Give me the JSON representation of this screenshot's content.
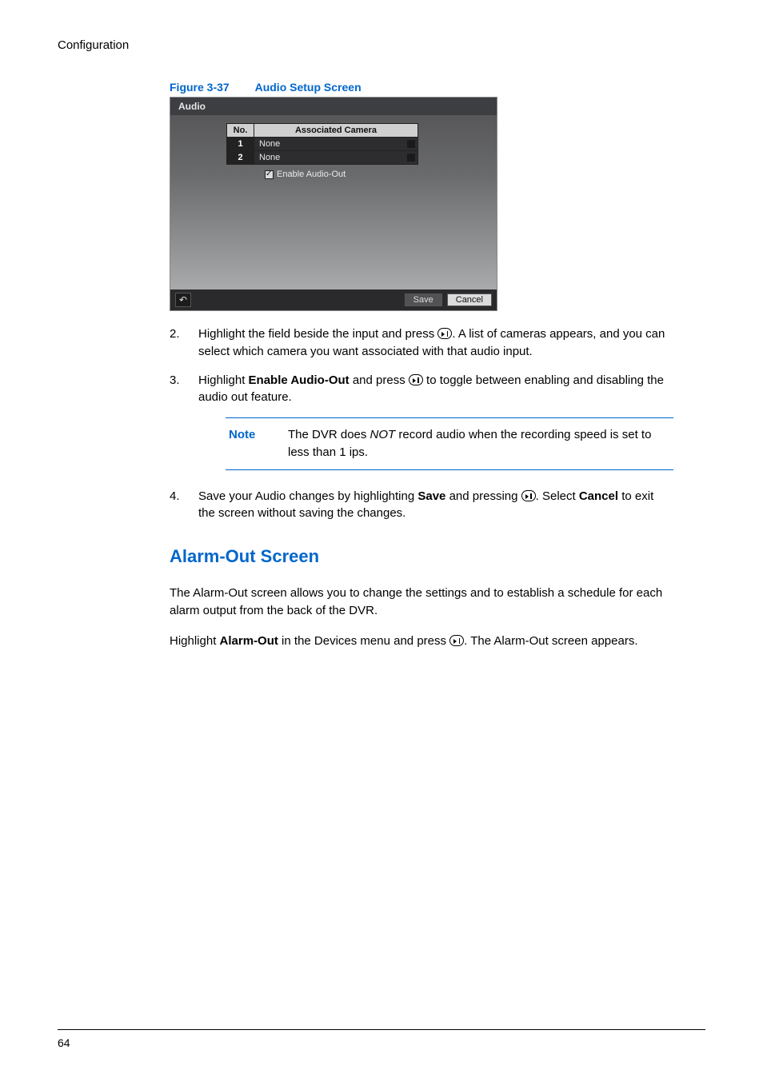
{
  "runningHead": "Configuration",
  "figure": {
    "number": "Figure 3-37",
    "title": "Audio Setup Screen"
  },
  "screenshot": {
    "titlebar": "Audio",
    "headers": {
      "no": "No.",
      "assoc": "Associated Camera"
    },
    "rows": [
      {
        "no": "1",
        "val": "None"
      },
      {
        "no": "2",
        "val": "None"
      }
    ],
    "enableLabel": "Enable Audio-Out",
    "backGlyph": "↶",
    "saveLabel": "Save",
    "cancelLabel": "Cancel"
  },
  "steps": {
    "s2": {
      "num": "2.",
      "before": "Highlight the field beside the input and press ",
      "after": ". A list of cameras appears, and you can select which camera you want associated with that audio input."
    },
    "s3": {
      "num": "3.",
      "before": "Highlight ",
      "bold": "Enable Audio-Out",
      "mid": " and press ",
      "after": " to toggle between enabling and disabling the audio out feature."
    },
    "s4": {
      "num": "4.",
      "before": "Save your Audio changes by highlighting ",
      "bold1": "Save",
      "mid1": " and pressing ",
      "mid2": ". Select ",
      "bold2": "Cancel",
      "after": " to exit the screen without saving the changes."
    }
  },
  "note": {
    "label": "Note",
    "before": "The DVR does ",
    "italic": "NOT",
    "after": " record audio when the recording speed is set to less than 1 ips."
  },
  "section": {
    "heading": "Alarm-Out Screen",
    "p1": "The Alarm-Out screen allows you to change the settings and to establish a schedule for each alarm output from the back of the DVR.",
    "p2": {
      "before": "Highlight ",
      "bold": "Alarm-Out",
      "mid": " in the Devices menu and press ",
      "after": ". The Alarm-Out screen appears."
    }
  },
  "pageNumber": "64"
}
